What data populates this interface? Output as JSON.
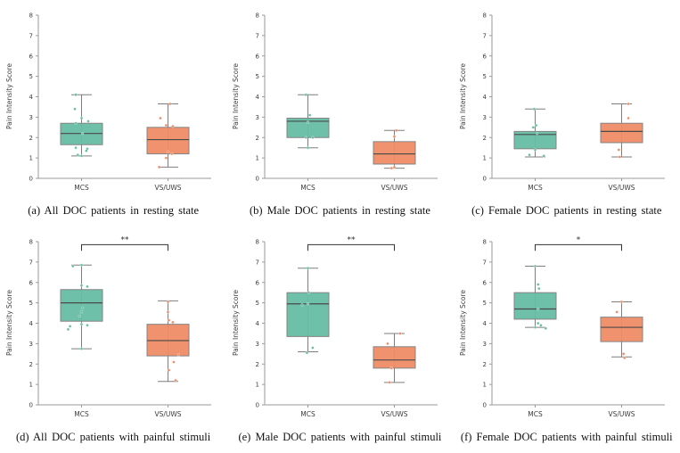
{
  "palette": {
    "mcs": "#66bda4",
    "vsuws": "#ef8c66",
    "box_edge": "#848484",
    "median_line": "#4a4a4a",
    "whisker": "#7e7e7e",
    "spine": "#9a9a9a",
    "tick_text": "#3c3c3c",
    "bracket": "#333333",
    "background": "#ffffff"
  },
  "axes": {
    "ylabel": "Pain Intensity Score",
    "ymin": 0,
    "ymax": 8,
    "yticks": [
      0,
      1,
      2,
      3,
      4,
      5,
      6,
      7,
      8
    ],
    "categories": [
      "MCS",
      "VS/UWS"
    ],
    "grid": false
  },
  "chart_data": [
    {
      "type": "box",
      "id": "a",
      "caption": "(a) All DOC patients in resting state",
      "significance": null,
      "categories": [
        "MCS",
        "VS/UWS"
      ],
      "ylabel": "Pain Intensity Score",
      "ylim": [
        0,
        8
      ],
      "groups": [
        {
          "category": "MCS",
          "color_key": "mcs",
          "whisker_low": 1.1,
          "q1": 1.65,
          "median": 2.2,
          "q3": 2.7,
          "whisker_high": 4.1,
          "points": [
            [
              4.1,
              -0.3
            ],
            [
              3.4,
              -0.35
            ],
            [
              2.95,
              0.0
            ],
            [
              2.8,
              0.35
            ],
            [
              2.7,
              -0.3
            ],
            [
              2.2,
              0.05
            ],
            [
              1.5,
              -0.3
            ],
            [
              1.45,
              0.3
            ],
            [
              1.35,
              0.25
            ],
            [
              1.15,
              -0.2
            ],
            [
              1.1,
              0.0
            ]
          ]
        },
        {
          "category": "VS/UWS",
          "color_key": "vsuws",
          "whisker_low": 0.55,
          "q1": 1.2,
          "median": 1.9,
          "q3": 2.5,
          "whisker_high": 3.65,
          "points": [
            [
              3.65,
              0.1
            ],
            [
              2.95,
              -0.4
            ],
            [
              2.6,
              -0.1
            ],
            [
              2.55,
              0.25
            ],
            [
              1.3,
              0.0
            ],
            [
              1.2,
              0.2
            ],
            [
              1.0,
              -0.1
            ],
            [
              0.55,
              -0.45
            ]
          ]
        }
      ]
    },
    {
      "type": "box",
      "id": "b",
      "caption": "(b) Male DOC patients in resting state",
      "significance": null,
      "categories": [
        "MCS",
        "VS/UWS"
      ],
      "ylabel": "Pain Intensity Score",
      "ylim": [
        0,
        8
      ],
      "groups": [
        {
          "category": "MCS",
          "color_key": "mcs",
          "whisker_low": 1.5,
          "q1": 2.0,
          "median": 2.8,
          "q3": 2.95,
          "whisker_high": 4.1,
          "points": [
            [
              4.1,
              -0.1
            ],
            [
              3.1,
              0.1
            ],
            [
              2.75,
              0.0
            ],
            [
              2.0,
              -0.1
            ],
            [
              2.0,
              0.25
            ],
            [
              1.5,
              0.0
            ]
          ]
        },
        {
          "category": "VS/UWS",
          "color_key": "vsuws",
          "whisker_low": 0.5,
          "q1": 0.7,
          "median": 1.2,
          "q3": 1.8,
          "whisker_high": 2.35,
          "points": [
            [
              2.35,
              0.1
            ],
            [
              2.05,
              0.0
            ],
            [
              0.55,
              0.0
            ],
            [
              0.5,
              -0.15
            ]
          ]
        }
      ]
    },
    {
      "type": "box",
      "id": "c",
      "caption": "(c) Female DOC patients in resting state",
      "significance": null,
      "categories": [
        "MCS",
        "VS/UWS"
      ],
      "ylabel": "Pain Intensity Score",
      "ylim": [
        0,
        8
      ],
      "groups": [
        {
          "category": "MCS",
          "color_key": "mcs",
          "whisker_low": 1.05,
          "q1": 1.45,
          "median": 2.15,
          "q3": 2.3,
          "whisker_high": 3.4,
          "points": [
            [
              3.4,
              -0.05
            ],
            [
              2.6,
              0.05
            ],
            [
              2.5,
              -0.1
            ],
            [
              2.2,
              0.1
            ],
            [
              1.4,
              0.0
            ],
            [
              1.15,
              -0.3
            ],
            [
              1.1,
              0.45
            ]
          ]
        },
        {
          "category": "VS/UWS",
          "color_key": "vsuws",
          "whisker_low": 1.05,
          "q1": 1.75,
          "median": 2.3,
          "q3": 2.7,
          "whisker_high": 3.65,
          "points": [
            [
              3.65,
              0.35
            ],
            [
              2.95,
              0.35
            ],
            [
              1.4,
              -0.15
            ],
            [
              1.05,
              -0.1
            ]
          ]
        }
      ]
    },
    {
      "type": "box",
      "id": "d",
      "caption": "(d) All DOC patients with painful stimuli",
      "significance": "**",
      "categories": [
        "MCS",
        "VS/UWS"
      ],
      "ylabel": "Pain Intensity Score",
      "ylim": [
        0,
        8
      ],
      "groups": [
        {
          "category": "MCS",
          "color_key": "mcs",
          "whisker_low": 2.75,
          "q1": 4.1,
          "median": 5.0,
          "q3": 5.65,
          "whisker_high": 6.85,
          "points": [
            [
              6.8,
              -0.45
            ],
            [
              6.85,
              0.0
            ],
            [
              5.85,
              0.0
            ],
            [
              5.8,
              0.3
            ],
            [
              4.75,
              0.05
            ],
            [
              4.55,
              0.0
            ],
            [
              4.35,
              -0.1
            ],
            [
              3.95,
              0.0
            ],
            [
              3.9,
              0.3
            ],
            [
              3.85,
              -0.6
            ],
            [
              3.7,
              -0.7
            ],
            [
              2.75,
              0.0
            ]
          ]
        },
        {
          "category": "VS/UWS",
          "color_key": "vsuws",
          "whisker_low": 1.15,
          "q1": 2.4,
          "median": 3.15,
          "q3": 3.95,
          "whisker_high": 5.1,
          "points": [
            [
              5.05,
              0.0
            ],
            [
              4.55,
              0.0
            ],
            [
              4.15,
              0.05
            ],
            [
              4.05,
              0.25
            ],
            [
              2.45,
              0.55
            ],
            [
              2.1,
              0.3
            ],
            [
              1.7,
              0.05
            ],
            [
              1.2,
              0.4
            ]
          ]
        }
      ]
    },
    {
      "type": "box",
      "id": "e",
      "caption": "(e) Male DOC patients with painful stimuli",
      "significance": "**",
      "categories": [
        "MCS",
        "VS/UWS"
      ],
      "ylabel": "Pain Intensity Score",
      "ylim": [
        0,
        8
      ],
      "groups": [
        {
          "category": "MCS",
          "color_key": "mcs",
          "whisker_low": 2.6,
          "q1": 3.35,
          "median": 4.95,
          "q3": 5.5,
          "whisker_high": 6.7,
          "points": [
            [
              6.7,
              0.0
            ],
            [
              5.5,
              0.05
            ],
            [
              4.95,
              0.0
            ],
            [
              4.9,
              -0.3
            ],
            [
              2.8,
              0.25
            ],
            [
              2.55,
              -0.05
            ]
          ]
        },
        {
          "category": "VS/UWS",
          "color_key": "vsuws",
          "whisker_low": 1.1,
          "q1": 1.8,
          "median": 2.2,
          "q3": 2.85,
          "whisker_high": 3.5,
          "points": [
            [
              3.5,
              0.3
            ],
            [
              3.0,
              -0.35
            ],
            [
              1.8,
              -0.15
            ],
            [
              1.1,
              -0.25
            ]
          ]
        }
      ]
    },
    {
      "type": "box",
      "id": "f",
      "caption": "(f) Female DOC patients with painful stimuli",
      "significance": "*",
      "categories": [
        "MCS",
        "VS/UWS"
      ],
      "ylabel": "Pain Intensity Score",
      "ylim": [
        0,
        8
      ],
      "groups": [
        {
          "category": "MCS",
          "color_key": "mcs",
          "whisker_low": 3.8,
          "q1": 4.2,
          "median": 4.7,
          "q3": 5.5,
          "whisker_high": 6.8,
          "points": [
            [
              6.8,
              0.0
            ],
            [
              5.9,
              0.15
            ],
            [
              5.7,
              0.2
            ],
            [
              4.7,
              0.15
            ],
            [
              4.0,
              0.15
            ],
            [
              3.9,
              0.3
            ],
            [
              3.8,
              0.0
            ],
            [
              3.75,
              0.55
            ]
          ]
        },
        {
          "category": "VS/UWS",
          "color_key": "vsuws",
          "whisker_low": 2.35,
          "q1": 3.1,
          "median": 3.8,
          "q3": 4.3,
          "whisker_high": 5.05,
          "points": [
            [
              5.05,
              0.0
            ],
            [
              4.55,
              -0.25
            ],
            [
              2.5,
              0.1
            ],
            [
              2.3,
              0.15
            ]
          ]
        }
      ]
    }
  ]
}
